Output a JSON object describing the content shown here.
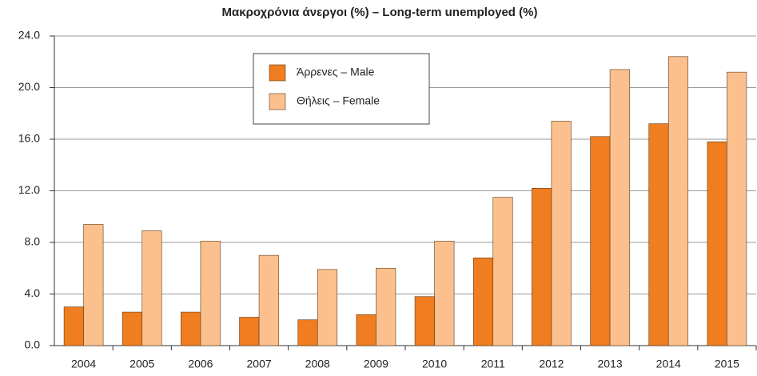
{
  "chart_data": {
    "type": "bar",
    "title": "Μακροχρόνια άνεργοι (%) – Long-term unemployed (%)",
    "categories": [
      "2004",
      "2005",
      "2006",
      "2007",
      "2008",
      "2009",
      "2010",
      "2011",
      "2012",
      "2013",
      "2014",
      "2015"
    ],
    "series": [
      {
        "name": "Άρρενες – Male",
        "color": "#f07d1f",
        "values": [
          3.0,
          2.6,
          2.6,
          2.2,
          2.0,
          2.4,
          3.8,
          6.8,
          12.2,
          16.2,
          17.2,
          15.8
        ]
      },
      {
        "name": "Θήλεις – Female",
        "color": "#fbc08d",
        "values": [
          9.4,
          8.9,
          8.1,
          7.0,
          5.9,
          6.0,
          8.1,
          11.5,
          17.4,
          21.4,
          22.4,
          21.2
        ]
      }
    ],
    "ylim": [
      0,
      24
    ],
    "yticks": [
      {
        "value": 0,
        "label": "0.0"
      },
      {
        "value": 4,
        "label": "4.0"
      },
      {
        "value": 8,
        "label": "8.0"
      },
      {
        "value": 12,
        "label": "12.0"
      },
      {
        "value": 16,
        "label": "16.0"
      },
      {
        "value": 20,
        "label": "20.0"
      },
      {
        "value": 24,
        "label": "24.0"
      }
    ],
    "grid": true,
    "legend_position": "upper center"
  }
}
